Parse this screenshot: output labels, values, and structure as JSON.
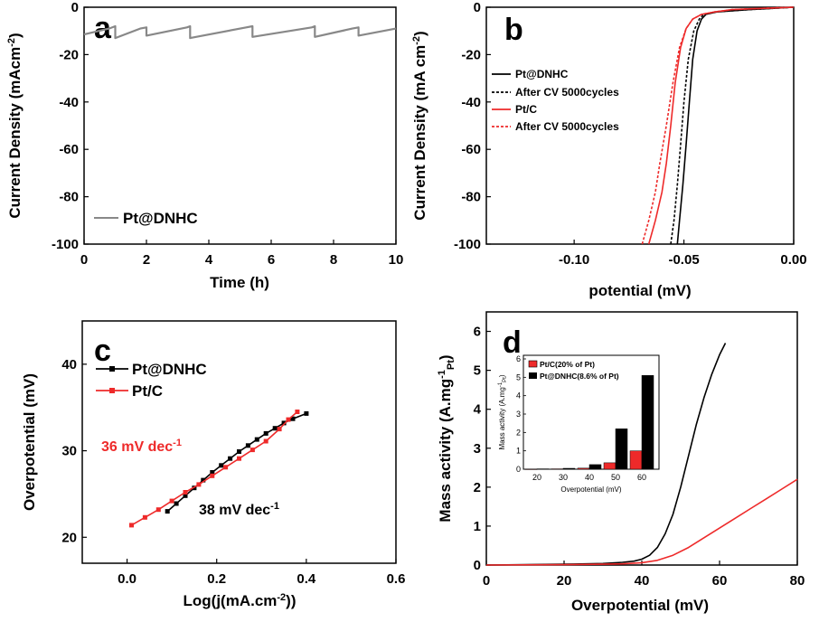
{
  "chart_data": [
    {
      "panel": "a",
      "type": "line",
      "xlabel": "Time (h)",
      "ylabel": "Current Density (mAcm",
      "ylabel_sup": "-2",
      "ylabel_close": ")",
      "xlim": [
        0,
        10
      ],
      "ylim": [
        -100,
        0
      ],
      "xticks": [
        "0",
        "2",
        "4",
        "6",
        "8",
        "10"
      ],
      "yticks": [
        "0",
        "-20",
        "-40",
        "-60",
        "-80",
        "-100"
      ],
      "legend": [
        "Pt@DNHC"
      ],
      "legend_position": "lower-left",
      "series": [
        {
          "name": "Pt@DNHC",
          "color": "#888888",
          "x": [
            0,
            0.8,
            1.0,
            1.0,
            1.8,
            2.0,
            2.0,
            3.3,
            3.4,
            3.4,
            5.2,
            5.4,
            5.4,
            7.3,
            7.4,
            7.4,
            8.6,
            8.8,
            8.8,
            10
          ],
          "y": [
            -11.5,
            -9,
            -8,
            -13,
            -9,
            -8.5,
            -12,
            -8.5,
            -8,
            -13,
            -8.5,
            -8,
            -12.5,
            -8.5,
            -8,
            -12.5,
            -9,
            -8.5,
            -12,
            -9
          ]
        }
      ]
    },
    {
      "panel": "b",
      "type": "line",
      "xlabel": "potential (mV)",
      "ylabel": "Current Density (mA cm",
      "ylabel_sup": "-2",
      "ylabel_close": ")",
      "xlim": [
        -0.14,
        0.0
      ],
      "ylim": [
        -100,
        0
      ],
      "xticks": [
        "-0.10",
        "-0.05",
        "0.00"
      ],
      "yticks": [
        "0",
        "-20",
        "-40",
        "-60",
        "-80",
        "-100"
      ],
      "legend": [
        "Pt@DNHC",
        "After CV 5000cycles",
        "Pt/C",
        "After CV 5000cycles"
      ],
      "legend_position": "upper-left",
      "series": [
        {
          "name": "Pt@DNHC",
          "color": "#000000",
          "x": [
            -0.053,
            -0.052,
            -0.0505,
            -0.049,
            -0.0475,
            -0.046,
            -0.044,
            -0.042,
            -0.04,
            -0.035,
            -0.028,
            -0.02,
            -0.01,
            0.0
          ],
          "y": [
            -100,
            -90,
            -75,
            -58,
            -40,
            -22,
            -10,
            -5,
            -3,
            -2,
            -1.5,
            -1,
            -0.5,
            0
          ]
        }
      ],
      "series_dashed": [
        {
          "name": "After CV 5000cycles",
          "color": "#000000",
          "x": [
            -0.056,
            -0.0545,
            -0.053,
            -0.0515,
            -0.05,
            -0.048,
            -0.0455,
            -0.043,
            -0.041,
            -0.036,
            -0.028,
            -0.02,
            -0.01,
            0.0
          ],
          "y": [
            -100,
            -90,
            -75,
            -58,
            -40,
            -22,
            -10,
            -5,
            -3,
            -2,
            -1.5,
            -1,
            -0.5,
            0
          ]
        },
        {
          "name": "After CV 5000cycles",
          "color": "#ee2a2a",
          "x": [
            -0.069,
            -0.066,
            -0.063,
            -0.061,
            -0.058,
            -0.055,
            -0.052,
            -0.049,
            -0.046,
            -0.042,
            -0.036,
            -0.028,
            -0.015,
            0.0
          ],
          "y": [
            -100,
            -90,
            -78,
            -66,
            -50,
            -32,
            -17,
            -9,
            -5,
            -3,
            -2,
            -1,
            -0.5,
            0
          ]
        }
      ],
      "series_red": [
        {
          "name": "Pt/C",
          "color": "#ee2a2a",
          "x": [
            -0.066,
            -0.063,
            -0.06,
            -0.058,
            -0.056,
            -0.054,
            -0.0515,
            -0.049,
            -0.046,
            -0.042,
            -0.036,
            -0.028,
            -0.015,
            0.0
          ],
          "y": [
            -100,
            -90,
            -78,
            -66,
            -50,
            -32,
            -17,
            -9,
            -5,
            -3,
            -2,
            -1,
            -0.5,
            0
          ]
        }
      ]
    },
    {
      "panel": "c",
      "type": "line",
      "xlabel": "Log(j(mA.cm",
      "xlabel_sup": "-2",
      "xlabel_close": "))",
      "ylabel": "Overpotential (mV)",
      "xlim": [
        -0.1,
        0.6
      ],
      "ylim": [
        17,
        45
      ],
      "xticks": [
        "0.0",
        "0.2",
        "0.4",
        "0.6"
      ],
      "yticks": [
        "20",
        "30",
        "40"
      ],
      "legend": [
        "Pt@DNHC",
        "Pt/C"
      ],
      "legend_position": "upper-left",
      "annotations": [
        {
          "text": "36 mV dec",
          "sup": "-1",
          "color": "#ee2a2a"
        },
        {
          "text": "38 mV dec",
          "sup": "-1",
          "color": "#000000"
        }
      ],
      "series": [
        {
          "name": "Pt@DNHC",
          "color": "#000000",
          "x": [
            0.09,
            0.11,
            0.13,
            0.15,
            0.17,
            0.19,
            0.21,
            0.23,
            0.25,
            0.27,
            0.29,
            0.31,
            0.33,
            0.35,
            0.37,
            0.4
          ],
          "y": [
            23.0,
            23.9,
            24.8,
            25.7,
            26.6,
            27.5,
            28.3,
            29.1,
            29.9,
            30.6,
            31.3,
            32.0,
            32.6,
            33.2,
            33.7,
            34.3
          ]
        },
        {
          "name": "Pt/C",
          "color": "#ee2a2a",
          "x": [
            0.01,
            0.04,
            0.07,
            0.1,
            0.13,
            0.16,
            0.19,
            0.22,
            0.25,
            0.28,
            0.31,
            0.34,
            0.36,
            0.38
          ],
          "y": [
            21.4,
            22.3,
            23.2,
            24.2,
            25.2,
            26.1,
            27.1,
            28.1,
            29.1,
            30.1,
            31.1,
            32.5,
            33.6,
            34.5
          ]
        }
      ]
    },
    {
      "panel": "d",
      "type": "line",
      "xlabel": "Overpotential (mV)",
      "ylabel": "Mass activity (A.mg",
      "ylabel_sup": "-1",
      "ylabel_sub": "Pt",
      "ylabel_close": ")",
      "xlim": [
        0,
        80
      ],
      "ylim": [
        0,
        6.5
      ],
      "xticks": [
        "0",
        "20",
        "40",
        "60",
        "80"
      ],
      "yticks": [
        "0",
        "1",
        "2",
        "3",
        "4",
        "5",
        "6"
      ],
      "series": [
        {
          "name": "Pt@DNHC",
          "color": "#000000",
          "x": [
            0,
            10,
            20,
            30,
            35,
            38,
            40,
            42,
            44,
            46,
            48,
            50,
            52,
            54,
            56,
            58,
            60,
            61.5
          ],
          "y": [
            0,
            0.01,
            0.02,
            0.04,
            0.07,
            0.1,
            0.15,
            0.25,
            0.45,
            0.8,
            1.3,
            2.0,
            2.8,
            3.6,
            4.3,
            4.9,
            5.4,
            5.7
          ]
        },
        {
          "name": "Pt/C",
          "color": "#ee2a2a",
          "x": [
            0,
            20,
            30,
            35,
            40,
            44,
            48,
            52,
            56,
            60,
            64,
            68,
            72,
            76,
            80
          ],
          "y": [
            0,
            0.01,
            0.02,
            0.03,
            0.06,
            0.12,
            0.25,
            0.45,
            0.7,
            0.95,
            1.2,
            1.45,
            1.7,
            1.95,
            2.2
          ]
        }
      ],
      "inset": {
        "type": "bar",
        "xlabel": "Overpotential (mV)",
        "ylabel": "Mass activity (A.mg",
        "ylabel_sup": "-1",
        "ylabel_sub": "Pt",
        "ylabel_close": ")",
        "categories": [
          "20",
          "30",
          "40",
          "50",
          "60"
        ],
        "yticks": [
          "0",
          "1",
          "2",
          "3",
          "4",
          "5",
          "6"
        ],
        "ylim": [
          0,
          6
        ],
        "legend": [
          "Pt/C(20% of Pt)",
          "Pt@DNHC(8.6% of Pt)"
        ],
        "series": [
          {
            "name": "Pt/C(20% of Pt)",
            "color": "#ee2a2a",
            "values": [
              0.01,
              0.02,
              0.06,
              0.35,
              1.0
            ]
          },
          {
            "name": "Pt@DNHC(8.6% of Pt)",
            "color": "#000000",
            "values": [
              0.02,
              0.05,
              0.25,
              2.2,
              5.1
            ]
          }
        ]
      }
    }
  ]
}
